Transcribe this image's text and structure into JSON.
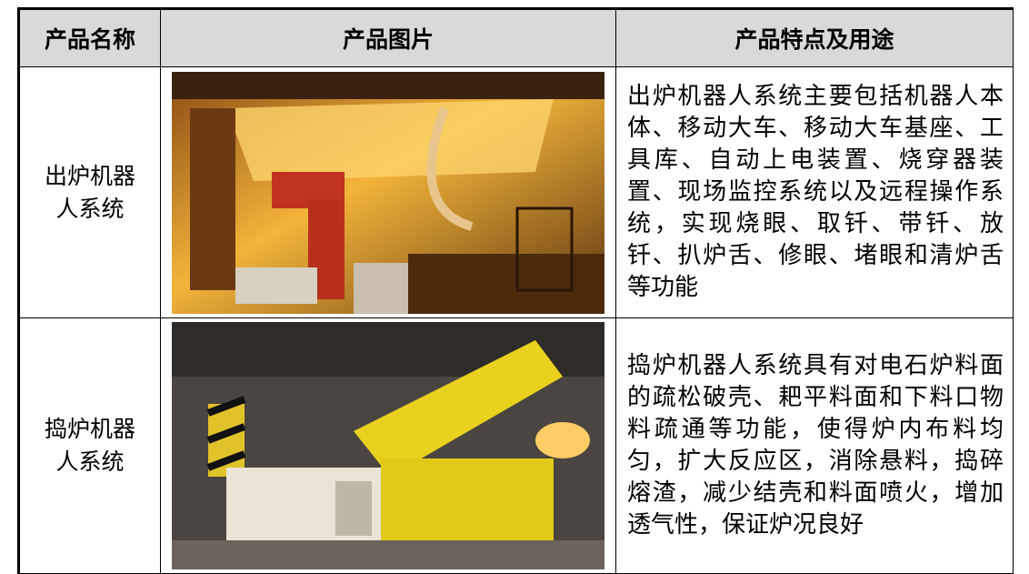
{
  "table": {
    "header": [
      "产品名称",
      "产品图片",
      "产品特点及用途"
    ],
    "rows": [
      [
        "出炉机器人系统",
        "出炉机器人系统主要包括机器人本体、移动大车、移动大车基座、工具库、自动上电装置、烧穿器装置、现场监控系统以及远程操作系统，实现烧眼、取钎、带钎、放钎、扒炉舌、修眼、堵眼和清炉舌等功能"
      ],
      [
        "捣炉机器人系统",
        "捣炉机器人系统具有对电石炉料面的疏松破壳、耙平料面和下料口物料疏通等功能，使得炉内布料均匀，扩大反应区，消除悬料，捣碎熔渣，减少结壳和料面喷火，增加透气性，保证炉况良好"
      ]
    ]
  }
}
